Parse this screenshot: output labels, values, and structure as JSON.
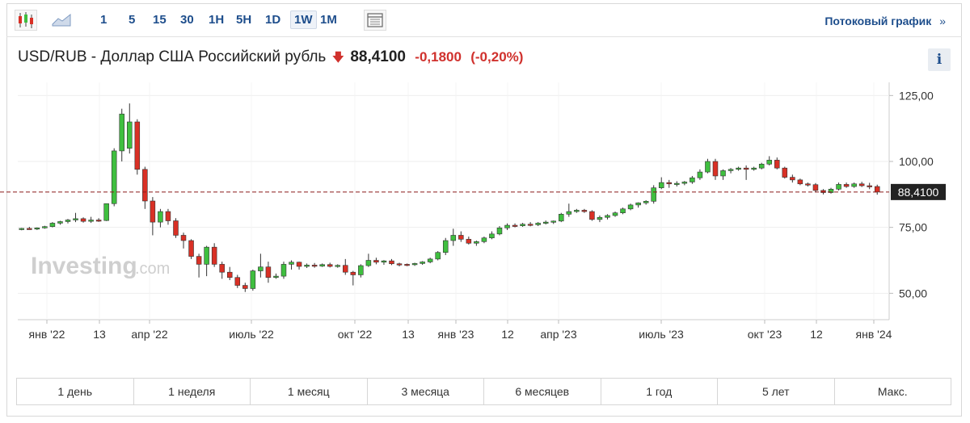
{
  "toolbar": {
    "icons": [
      "candlestick-chart-icon",
      "area-chart-icon",
      "table-view-icon"
    ],
    "timeframes": [
      "1",
      "5",
      "15",
      "30",
      "1H",
      "5H",
      "1D",
      "1W",
      "1M"
    ],
    "active_timeframe": "1W",
    "stream_label": "Потоковый график",
    "stream_arrow": "»"
  },
  "header": {
    "title": "USD/RUB - Доллар США Российский рубль",
    "down_arrow": "🡇",
    "price": "88,4100",
    "change": "-0,1800",
    "change_pct": "(-0,20%)",
    "info_label": "i"
  },
  "watermark": {
    "brand": "Investing",
    "suffix": ".com"
  },
  "ranges": [
    "1 день",
    "1 неделя",
    "1 месяц",
    "3 месяца",
    "6 месяцев",
    "1 год",
    "5 лет",
    "Макс."
  ],
  "colors": {
    "up": "#3fbf3f",
    "down": "#d93025",
    "accent": "#1e4e8c",
    "last_line": "#8b1a1a"
  },
  "chart_data": {
    "type": "candlestick",
    "symbol": "USD/RUB",
    "interval": "1W",
    "ylim": [
      40,
      130
    ],
    "yticks": [
      50,
      75,
      100,
      125
    ],
    "ytick_labels": [
      "50,00",
      "75,00",
      "100,00",
      "125,00"
    ],
    "x_labels": [
      "янв '22",
      "13",
      "апр '22",
      "июль '22",
      "окт '22",
      "13",
      "янв '23",
      "12",
      "апр '23",
      "июль '23",
      "окт '23",
      "12",
      "янв '24"
    ],
    "last_price": 88.41,
    "last_price_label": "88,4100",
    "candles": [
      [
        74.3,
        74.8,
        73.9,
        74.6
      ],
      [
        74.6,
        75.2,
        74.1,
        74.4
      ],
      [
        74.4,
        75.0,
        74.0,
        74.8
      ],
      [
        74.8,
        75.6,
        74.5,
        75.3
      ],
      [
        75.3,
        77.0,
        75.0,
        76.6
      ],
      [
        76.6,
        77.5,
        76.0,
        77.2
      ],
      [
        77.2,
        78.2,
        76.5,
        77.8
      ],
      [
        77.8,
        80.5,
        77.0,
        78.3
      ],
      [
        78.3,
        78.8,
        76.8,
        77.3
      ],
      [
        77.3,
        79.0,
        76.7,
        77.8
      ],
      [
        77.8,
        78.5,
        77.1,
        77.6
      ],
      [
        77.6,
        84.0,
        77.4,
        84.0
      ],
      [
        84.0,
        105.0,
        83.0,
        104.0
      ],
      [
        104.0,
        120.0,
        100.0,
        118.0
      ],
      [
        105.0,
        122.0,
        103.0,
        115.0
      ],
      [
        115.0,
        116.0,
        95.0,
        97.0
      ],
      [
        97.0,
        98.0,
        82.0,
        85.0
      ],
      [
        85.0,
        86.5,
        72.0,
        77.0
      ],
      [
        77.0,
        82.0,
        75.0,
        81.0
      ],
      [
        81.0,
        82.0,
        76.0,
        77.5
      ],
      [
        77.5,
        78.5,
        71.0,
        72.0
      ],
      [
        72.0,
        73.0,
        67.0,
        70.0
      ],
      [
        70.0,
        70.5,
        63.0,
        64.0
      ],
      [
        64.0,
        65.0,
        56.0,
        61.0
      ],
      [
        61.0,
        68.0,
        56.5,
        67.5
      ],
      [
        67.5,
        69.0,
        60.0,
        61.0
      ],
      [
        61.0,
        62.0,
        55.5,
        58.0
      ],
      [
        58.0,
        60.0,
        55.0,
        56.0
      ],
      [
        56.0,
        57.0,
        52.0,
        53.0
      ],
      [
        53.0,
        54.0,
        50.5,
        51.8
      ],
      [
        51.8,
        59.0,
        51.0,
        58.5
      ],
      [
        58.5,
        65.0,
        56.0,
        60.0
      ],
      [
        60.0,
        62.0,
        54.0,
        56.0
      ],
      [
        56.0,
        57.5,
        55.5,
        56.5
      ],
      [
        56.5,
        62.0,
        55.5,
        61.0
      ],
      [
        61.0,
        62.5,
        59.0,
        61.8
      ],
      [
        61.8,
        62.0,
        59.0,
        60.2
      ],
      [
        60.2,
        61.3,
        59.6,
        60.7
      ],
      [
        60.7,
        61.5,
        59.7,
        60.3
      ],
      [
        60.3,
        61.3,
        60.0,
        60.9
      ],
      [
        60.9,
        61.6,
        59.8,
        60.2
      ],
      [
        60.2,
        61.0,
        59.7,
        60.6
      ],
      [
        60.6,
        63.0,
        57.0,
        58.0
      ],
      [
        58.0,
        58.5,
        53.0,
        57.0
      ],
      [
        57.0,
        61.0,
        56.0,
        60.5
      ],
      [
        60.5,
        65.0,
        60.0,
        62.5
      ],
      [
        62.5,
        63.5,
        61.0,
        61.8
      ],
      [
        61.8,
        62.6,
        60.8,
        62.3
      ],
      [
        62.3,
        63.0,
        60.7,
        61.2
      ],
      [
        61.2,
        61.6,
        60.2,
        61.0
      ],
      [
        61.0,
        61.3,
        60.3,
        60.9
      ],
      [
        60.9,
        61.6,
        60.4,
        61.3
      ],
      [
        61.3,
        62.2,
        60.8,
        61.9
      ],
      [
        61.9,
        63.5,
        61.4,
        63.0
      ],
      [
        63.0,
        66.0,
        62.5,
        65.5
      ],
      [
        65.5,
        71.0,
        64.5,
        70.0
      ],
      [
        70.0,
        74.5,
        68.0,
        72.0
      ],
      [
        72.0,
        73.5,
        69.5,
        70.5
      ],
      [
        70.5,
        71.5,
        68.5,
        69.0
      ],
      [
        69.0,
        70.0,
        68.0,
        69.6
      ],
      [
        69.6,
        71.5,
        69.0,
        71.0
      ],
      [
        71.0,
        73.5,
        70.5,
        72.5
      ],
      [
        72.5,
        75.5,
        72.0,
        74.8
      ],
      [
        74.8,
        76.5,
        74.0,
        75.8
      ],
      [
        75.8,
        76.5,
        75.0,
        75.6
      ],
      [
        75.6,
        76.7,
        75.2,
        76.2
      ],
      [
        76.2,
        77.0,
        75.4,
        76.0
      ],
      [
        76.0,
        77.0,
        75.5,
        76.6
      ],
      [
        76.6,
        77.6,
        76.1,
        77.0
      ],
      [
        77.0,
        77.6,
        76.3,
        77.4
      ],
      [
        77.4,
        80.5,
        77.0,
        80.0
      ],
      [
        80.0,
        84.0,
        79.0,
        81.0
      ],
      [
        81.0,
        82.0,
        80.5,
        81.5
      ],
      [
        81.5,
        82.0,
        80.5,
        81.0
      ],
      [
        81.0,
        81.5,
        77.5,
        78.0
      ],
      [
        78.0,
        79.5,
        77.0,
        78.8
      ],
      [
        78.8,
        80.0,
        78.0,
        79.5
      ],
      [
        79.5,
        81.0,
        79.0,
        80.5
      ],
      [
        80.5,
        82.5,
        80.0,
        82.0
      ],
      [
        82.0,
        84.0,
        81.5,
        83.5
      ],
      [
        83.5,
        84.5,
        82.5,
        84.3
      ],
      [
        84.3,
        85.3,
        83.6,
        84.9
      ],
      [
        84.9,
        91.0,
        84.0,
        90.0
      ],
      [
        90.0,
        94.0,
        89.5,
        92.0
      ],
      [
        92.0,
        93.0,
        90.0,
        91.5
      ],
      [
        91.5,
        92.5,
        90.5,
        91.7
      ],
      [
        91.7,
        92.6,
        91.0,
        92.2
      ],
      [
        92.2,
        94.5,
        91.5,
        93.8
      ],
      [
        93.8,
        97.0,
        93.0,
        96.0
      ],
      [
        96.0,
        101.0,
        95.5,
        100.0
      ],
      [
        100.0,
        101.0,
        93.0,
        94.5
      ],
      [
        94.5,
        97.0,
        93.0,
        96.5
      ],
      [
        96.5,
        97.5,
        95.5,
        97.0
      ],
      [
        97.0,
        98.0,
        96.5,
        97.5
      ],
      [
        97.5,
        98.5,
        93.0,
        97.0
      ],
      [
        97.0,
        98.0,
        96.5,
        97.5
      ],
      [
        97.5,
        99.5,
        97.0,
        99.0
      ],
      [
        99.0,
        102.0,
        98.5,
        100.5
      ],
      [
        100.5,
        101.5,
        97.0,
        97.5
      ],
      [
        97.5,
        98.0,
        93.5,
        94.0
      ],
      [
        94.0,
        95.0,
        92.0,
        93.0
      ],
      [
        93.0,
        93.5,
        91.0,
        91.5
      ],
      [
        91.5,
        92.0,
        90.5,
        91.2
      ],
      [
        91.2,
        91.8,
        88.5,
        89.0
      ],
      [
        89.0,
        89.5,
        87.5,
        88.2
      ],
      [
        88.2,
        90.0,
        87.8,
        89.5
      ],
      [
        89.5,
        92.0,
        89.0,
        91.3
      ],
      [
        91.3,
        92.0,
        90.0,
        90.5
      ],
      [
        90.5,
        92.0,
        90.0,
        91.5
      ],
      [
        91.5,
        92.3,
        90.3,
        90.8
      ],
      [
        90.8,
        91.9,
        89.5,
        90.7
      ],
      [
        90.5,
        91.2,
        87.4,
        88.4
      ]
    ]
  }
}
